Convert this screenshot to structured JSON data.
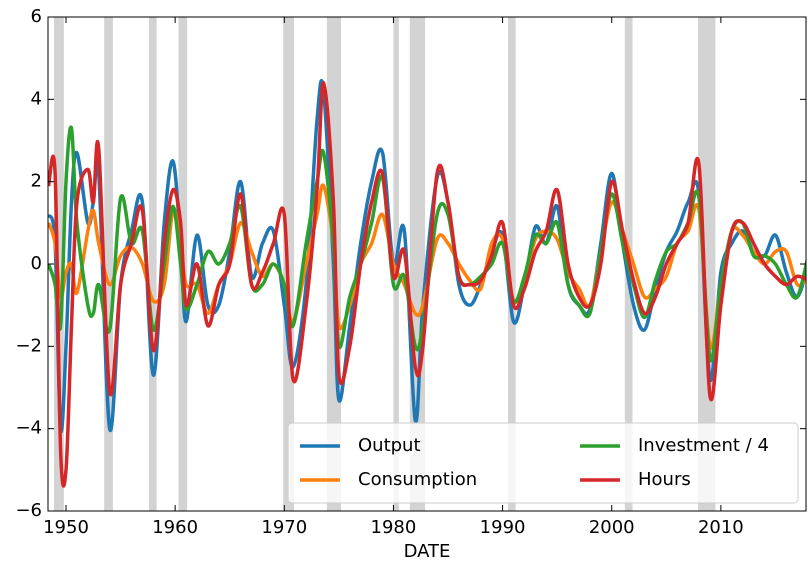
{
  "chart_data": {
    "type": "line",
    "xlabel": "DATE",
    "x": [
      1948.4,
      1949,
      1949.5,
      1950,
      1950.5,
      1951,
      1952,
      1952.5,
      1953,
      1954,
      1955,
      1956,
      1957,
      1958,
      1959,
      1959.8,
      1960.5,
      1961,
      1962,
      1963,
      1964,
      1965,
      1966,
      1967,
      1968,
      1969,
      1970,
      1970.8,
      1972,
      1973,
      1973.6,
      1974.5,
      1975,
      1976,
      1977,
      1978,
      1979,
      1980,
      1981,
      1982,
      1982.7,
      1984,
      1985,
      1986,
      1987,
      1988,
      1989,
      1990,
      1991,
      1992,
      1993,
      1994,
      1995,
      1996,
      1997,
      1998,
      1999,
      2000,
      2001,
      2002,
      2003,
      2004,
      2005,
      2006,
      2007,
      2008,
      2009,
      2010,
      2011,
      2012,
      2013,
      2014,
      2015,
      2016,
      2017,
      2018
    ],
    "series": [
      {
        "name": "Output",
        "color": "#1f77b4",
        "values": [
          1.2,
          0.5,
          -4,
          -2,
          1.5,
          2.7,
          1,
          1.5,
          2.2,
          -4,
          -0.5,
          0.8,
          1.5,
          -2.7,
          1,
          2.5,
          0.5,
          -1.4,
          0.7,
          -1,
          -1,
          0.3,
          2,
          -0.3,
          0.5,
          0.8,
          -1,
          -2.5,
          -0.5,
          3.5,
          4.2,
          0,
          -3.3,
          -1.5,
          0.5,
          2,
          2.7,
          0,
          0.8,
          -3.8,
          -1,
          2.1,
          1.5,
          -0.5,
          -1,
          -0.5,
          0.3,
          0.7,
          -1.4,
          -0.5,
          0.9,
          0.5,
          1.4,
          -0.5,
          -1,
          -1.1,
          0.5,
          2.2,
          0.5,
          -1,
          -1.6,
          -0.6,
          0.3,
          0.8,
          1.5,
          1.7,
          -2.8,
          -0.2,
          0.5,
          0.8,
          0.3,
          0.2,
          0.7,
          -0.2,
          -0.8,
          0
        ]
      },
      {
        "name": "Consumption",
        "color": "#ff7f0e",
        "values": [
          1.0,
          0.5,
          -0.8,
          -0.2,
          0,
          -0.7,
          0.8,
          1.3,
          0.5,
          -0.5,
          0.2,
          0.4,
          0,
          -0.9,
          -0.5,
          1.3,
          0.5,
          -0.5,
          -0.5,
          -1.2,
          -0.5,
          0,
          1.0,
          0.3,
          -0.3,
          0,
          -0.5,
          -1.4,
          0,
          1.2,
          1.9,
          0.5,
          -1.5,
          -1,
          0,
          0.5,
          1.2,
          0,
          -0.5,
          -1.2,
          -1,
          0.6,
          0.5,
          0,
          -0.4,
          -0.6,
          0.5,
          0.6,
          -0.9,
          -0.4,
          0.6,
          0.8,
          0.6,
          -0.2,
          -0.6,
          -1,
          0.3,
          1.5,
          0.8,
          0,
          -0.8,
          -0.6,
          -0.3,
          0.5,
          0.8,
          1.3,
          -2,
          -0.5,
          0.8,
          0.7,
          0.3,
          0,
          0.3,
          0.3,
          -0.5,
          -0.3
        ]
      },
      {
        "name": "Investment / 4",
        "color": "#2ca02c",
        "values": [
          0,
          -0.5,
          -1.5,
          2,
          3.3,
          1,
          -1,
          -1.2,
          -0.5,
          -1.6,
          1.6,
          0.5,
          0.8,
          -1.6,
          0,
          1.4,
          0,
          -1.1,
          -0.5,
          0.3,
          0,
          0.5,
          1.4,
          -0.5,
          -0.5,
          0,
          -0.5,
          -1.5,
          0.5,
          2,
          2.7,
          0.5,
          -2,
          -0.8,
          0,
          1,
          2.1,
          -0.5,
          -0.3,
          -2.0,
          -1.5,
          1.2,
          1.2,
          -0.3,
          -0.5,
          -0.3,
          0,
          0.5,
          -0.9,
          -0.3,
          0.7,
          0.5,
          1.0,
          -0.5,
          -1.0,
          -1.2,
          0.3,
          1.7,
          0.5,
          -0.5,
          -1.3,
          -0.4,
          0.3,
          0.5,
          1.0,
          1.6,
          -2.3,
          -0.5,
          0.8,
          1.0,
          0.2,
          0.2,
          0,
          -0.5,
          -0.8,
          0.2
        ]
      },
      {
        "name": "Hours",
        "color": "#d62728",
        "values": [
          1.9,
          2.2,
          -4.5,
          -5,
          -1.5,
          1.5,
          2.3,
          1.5,
          2.8,
          -3.1,
          -0.5,
          0.5,
          1.3,
          -2.1,
          0.5,
          1.8,
          1.0,
          -1.0,
          0,
          -1.5,
          -0.5,
          0,
          1.7,
          -0.5,
          -0.2,
          0.5,
          1.2,
          -2.8,
          -1,
          1.8,
          4.4,
          1.5,
          -2.7,
          -2.0,
          0,
          1.5,
          2.2,
          -0.3,
          0.3,
          -2.5,
          -2,
          2.2,
          1.5,
          -0.3,
          -0.5,
          -0.4,
          0.2,
          1.0,
          -1.0,
          -0.6,
          0.3,
          0.8,
          1.8,
          0,
          -0.8,
          -1,
          0,
          2,
          0.8,
          -0.4,
          -1.2,
          -0.8,
          0,
          0.5,
          1.0,
          2.4,
          -3.2,
          -1,
          0.8,
          1.0,
          0.5,
          0,
          -0.3,
          -0.5,
          -0.3,
          -0.4
        ]
      }
    ],
    "recessions": [
      [
        1948.9,
        1949.8
      ],
      [
        1953.5,
        1954.3
      ],
      [
        1957.6,
        1958.3
      ],
      [
        1960.3,
        1961.1
      ],
      [
        1969.9,
        1970.9
      ],
      [
        1973.9,
        1975.2
      ],
      [
        1980.0,
        1980.5
      ],
      [
        1981.5,
        1982.9
      ],
      [
        1990.5,
        1991.2
      ],
      [
        2001.2,
        2001.9
      ],
      [
        2007.9,
        2009.5
      ]
    ],
    "recession_color": "#d3d3d3",
    "xlim": [
      1948.35,
      2017.8
    ],
    "xticks": [
      1950,
      1960,
      1970,
      1980,
      1990,
      2000,
      2010
    ],
    "ylim": [
      -6,
      6
    ],
    "yticks": [
      {
        "value": -6,
        "label": "−6"
      },
      {
        "value": -4,
        "label": "−4"
      },
      {
        "value": -2,
        "label": "−2"
      },
      0,
      2,
      4,
      6
    ],
    "legend": "lower right"
  }
}
